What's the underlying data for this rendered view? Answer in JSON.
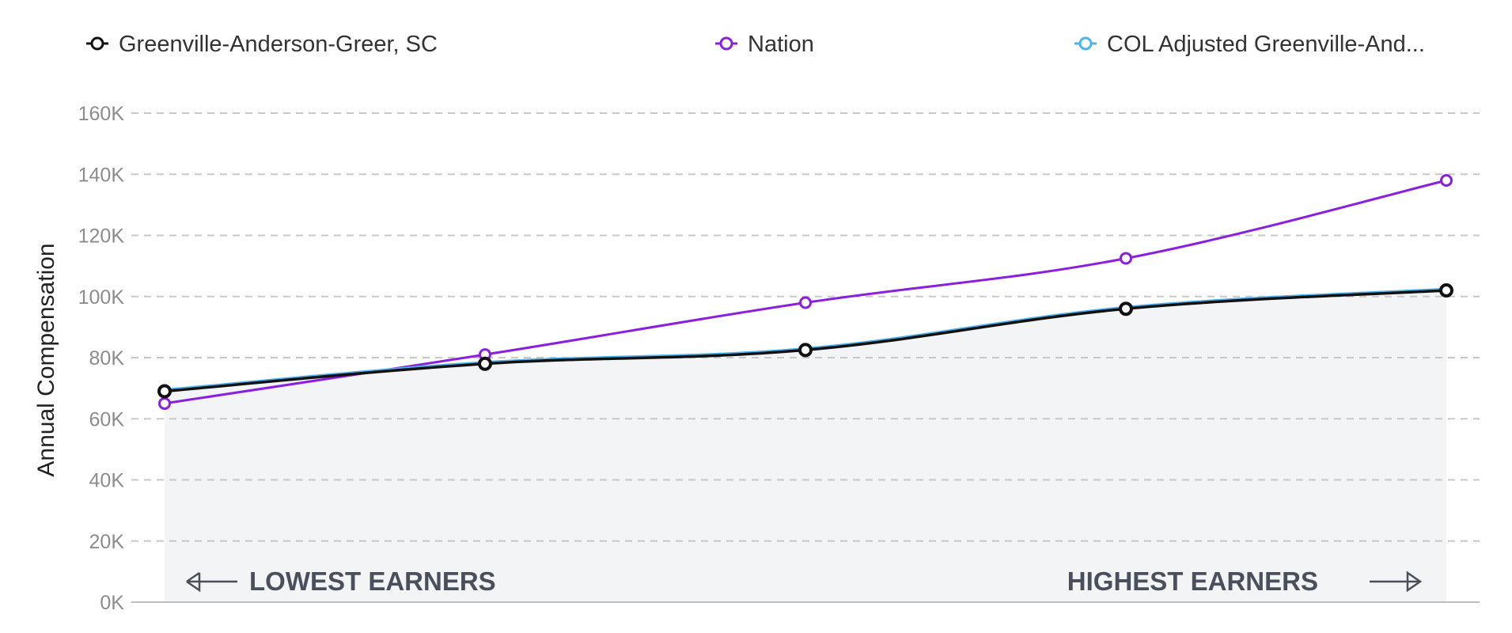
{
  "chart_data": {
    "type": "line",
    "ylabel": "Annual Compensation",
    "ylim": [
      0,
      160000
    ],
    "yticks": [
      {
        "value": 0,
        "label": "0K"
      },
      {
        "value": 20000,
        "label": "20K"
      },
      {
        "value": 40000,
        "label": "40K"
      },
      {
        "value": 60000,
        "label": "60K"
      },
      {
        "value": 80000,
        "label": "80K"
      },
      {
        "value": 100000,
        "label": "100K"
      },
      {
        "value": 120000,
        "label": "120K"
      },
      {
        "value": 140000,
        "label": "140K"
      },
      {
        "value": 160000,
        "label": "160K"
      }
    ],
    "grid": true,
    "legend_position": "top",
    "series": [
      {
        "name": "Greenville-Anderson-Greer, SC",
        "color": "#111111",
        "values": [
          69000,
          78000,
          82500,
          96000,
          102000
        ],
        "filled": true
      },
      {
        "name": "Nation",
        "color": "#8a1fe0",
        "values": [
          65000,
          81000,
          98000,
          112500,
          138000
        ],
        "filled": false
      },
      {
        "name": "COL Adjusted Greenville-And...",
        "color": "#4ab4f0",
        "values": [
          69500,
          78500,
          83000,
          96500,
          102500
        ],
        "filled": false
      }
    ],
    "fill_color": "#f3f4f6",
    "annotations": {
      "lowest": "LOWEST EARNERS",
      "highest": "HIGHEST EARNERS"
    }
  }
}
